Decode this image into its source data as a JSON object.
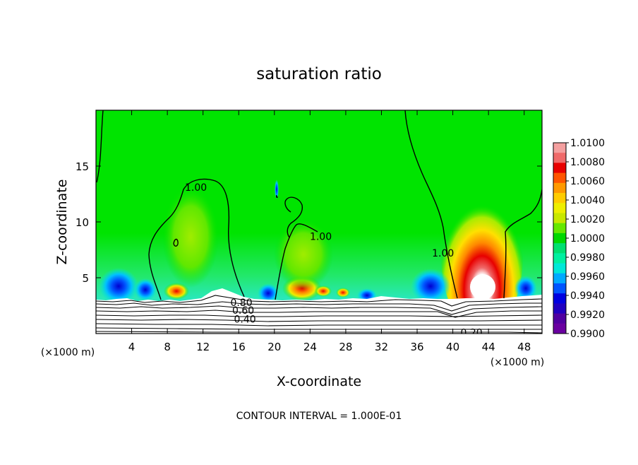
{
  "chart_data": {
    "type": "heatmap",
    "title": "saturation ratio",
    "xlabel": "X-coordinate",
    "ylabel": "Z-coordinate",
    "x_unit_label": "(×1000 m)",
    "y_unit_label": "(×1000 m)",
    "xlim": [
      0,
      50
    ],
    "ylim": [
      0,
      20
    ],
    "x_ticks": [
      4,
      8,
      12,
      16,
      20,
      24,
      28,
      32,
      36,
      40,
      44,
      48
    ],
    "y_ticks": [
      5,
      10,
      15
    ],
    "contour_interval_text": "CONTOUR INTERVAL = 1.000E-01",
    "contour_labels": [
      {
        "text": "1.00",
        "x": 11.2,
        "z": 13.1
      },
      {
        "text": "1.00",
        "x": 25.2,
        "z": 8.7
      },
      {
        "text": "1.00",
        "x": 38.9,
        "z": 7.2
      },
      {
        "text": "0.80",
        "x": 16.3,
        "z": 2.8
      },
      {
        "text": "0.60",
        "x": 16.5,
        "z": 2.1
      },
      {
        "text": "0.40",
        "x": 16.7,
        "z": 1.3
      },
      {
        "text": "0.20",
        "x": 42.1,
        "z": 0.1
      }
    ],
    "colorbar": {
      "min": 0.99,
      "max": 1.01,
      "labels": [
        "1.0100",
        "1.0080",
        "1.0060",
        "1.0040",
        "1.0020",
        "1.0000",
        "0.9980",
        "0.9960",
        "0.9940",
        "0.9920",
        "0.9900"
      ],
      "colors": [
        "#f4a0a0",
        "#f06a6a",
        "#e80000",
        "#ff5500",
        "#ff9900",
        "#ffcc00",
        "#eeee00",
        "#c8e800",
        "#66e800",
        "#00d800",
        "#00e070",
        "#00f0a0",
        "#00e8d8",
        "#00aaff",
        "#0055ff",
        "#0000e0",
        "#2000c0",
        "#5000a0",
        "#6a00a0"
      ]
    },
    "grid": false
  }
}
